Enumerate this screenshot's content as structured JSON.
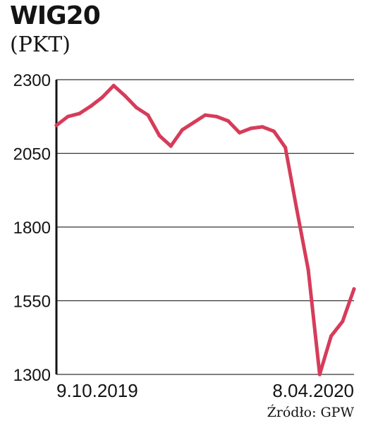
{
  "chart_data": {
    "type": "line",
    "title": "WIG20",
    "subtitle": "(PKT)",
    "source": "Źródło: GPW",
    "ylim": [
      1300,
      2300
    ],
    "yticks": [
      "2300",
      "2050",
      "1800",
      "1550",
      "1300"
    ],
    "xtick_labels": [
      "9.10.2019",
      "8.04.2020"
    ],
    "grid": true,
    "line_color": "#d63c5a",
    "x": [
      "2019-10-09",
      "2019-10-16",
      "2019-10-23",
      "2019-10-30",
      "2019-11-06",
      "2019-11-13",
      "2019-11-20",
      "2019-11-27",
      "2019-12-04",
      "2019-12-11",
      "2019-12-18",
      "2019-12-25",
      "2020-01-01",
      "2020-01-08",
      "2020-01-15",
      "2020-01-22",
      "2020-01-29",
      "2020-02-05",
      "2020-02-12",
      "2020-02-19",
      "2020-02-26",
      "2020-03-04",
      "2020-03-11",
      "2020-03-18",
      "2020-03-25",
      "2020-04-01",
      "2020-04-08"
    ],
    "values": [
      2145,
      2175,
      2185,
      2210,
      2240,
      2280,
      2245,
      2205,
      2180,
      2110,
      2075,
      2130,
      2155,
      2180,
      2175,
      2160,
      2120,
      2135,
      2140,
      2125,
      2070,
      1860,
      1655,
      1300,
      1430,
      1480,
      1590
    ]
  }
}
